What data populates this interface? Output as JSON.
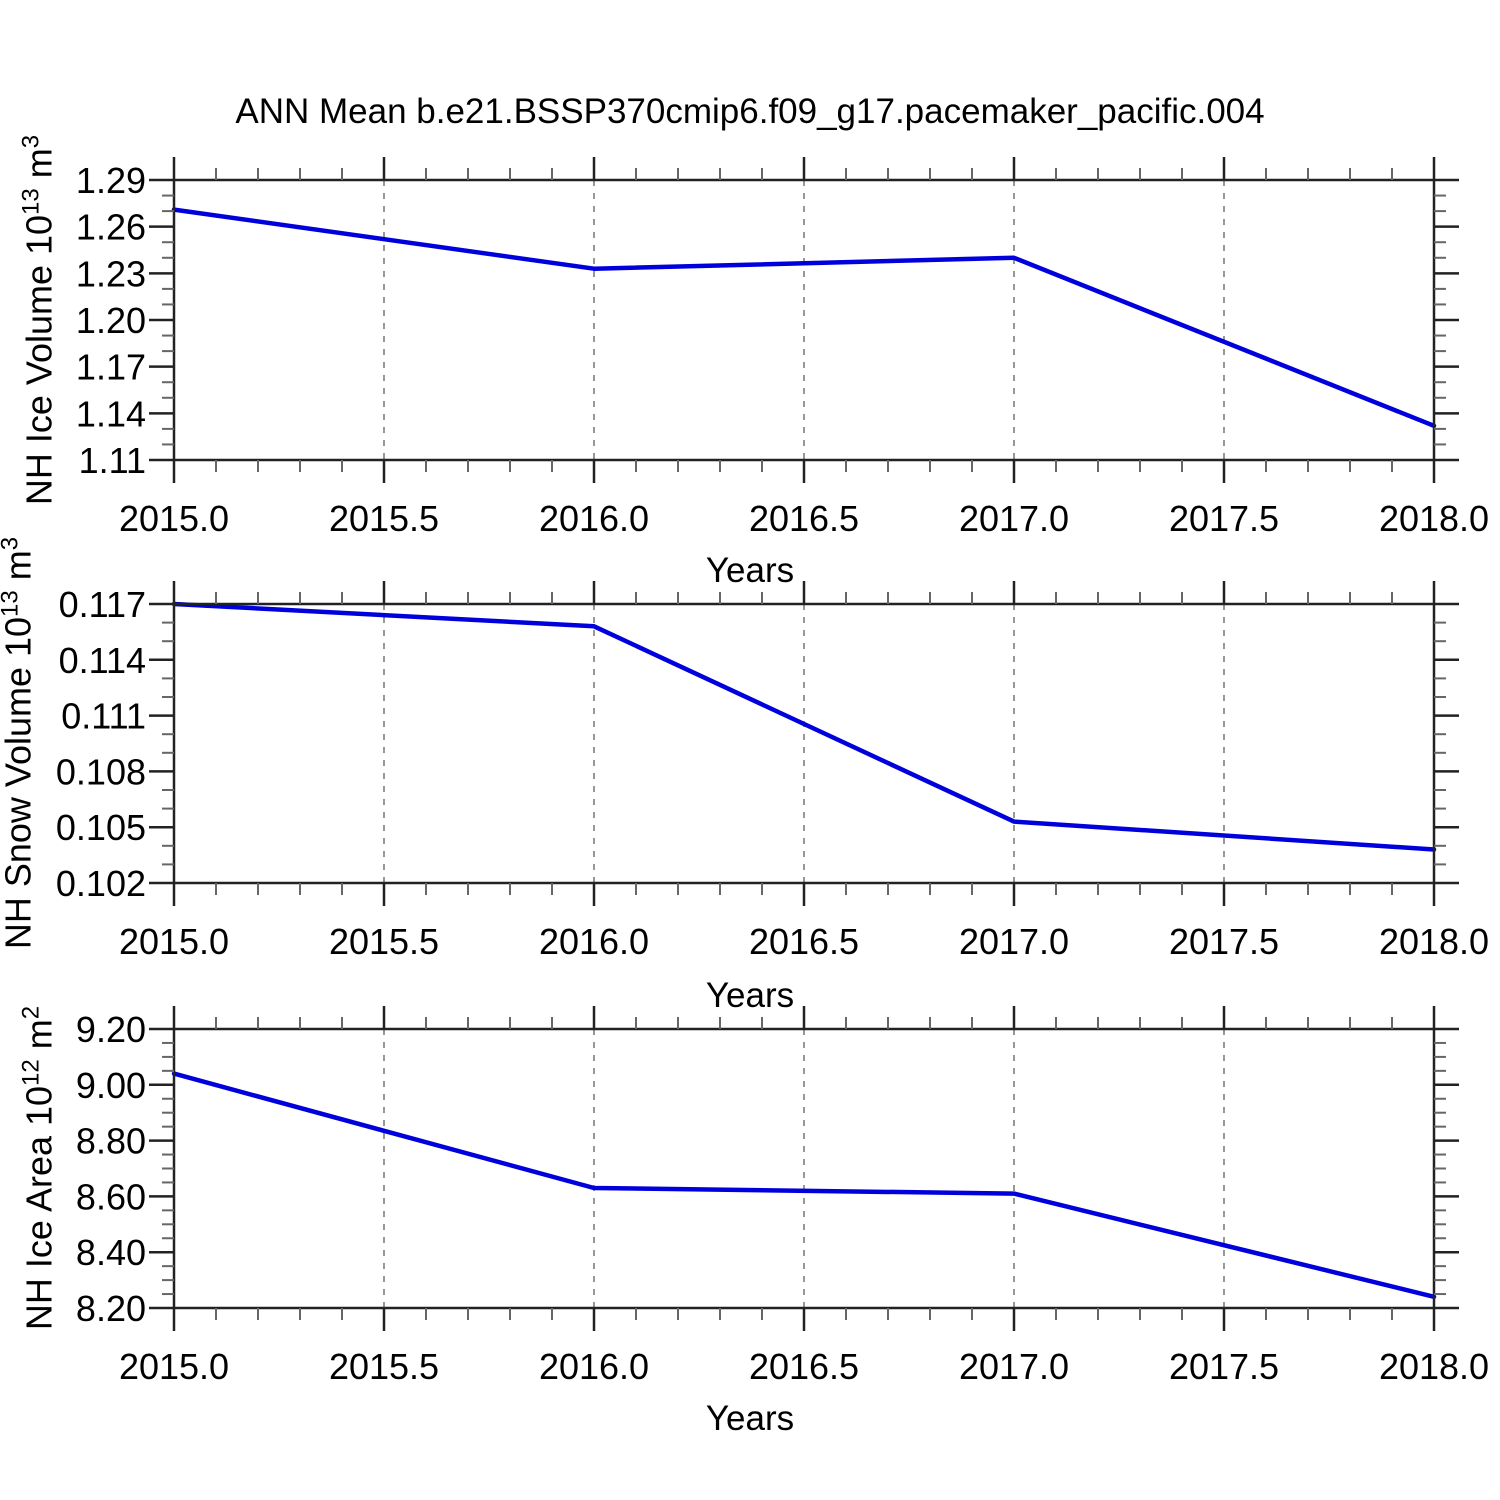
{
  "title": "ANN Mean b.e21.BSSP370cmip6.f09_g17.pacemaker_pacific.004",
  "colors": {
    "line": "#0000dd",
    "grid": "#8c8c8c",
    "axis": "#222222",
    "minor_tick": "#666666",
    "text": "#000000"
  },
  "chart_data": [
    {
      "type": "line",
      "series_name": "NH Ice Volume",
      "x": [
        2015.0,
        2016.0,
        2017.0,
        2018.0
      ],
      "values": [
        1.271,
        1.233,
        1.24,
        1.132
      ],
      "xlabel": "Years",
      "ylabel": {
        "prefix": "NH Ice Volume 10",
        "exponent": "13",
        "unit": " m",
        "unit_exponent": "3"
      },
      "ylim": [
        1.11,
        1.29
      ],
      "y_major_ticks": [
        "1.29",
        "1.26",
        "1.23",
        "1.20",
        "1.17",
        "1.14",
        "1.11"
      ],
      "y_major_values": [
        1.29,
        1.26,
        1.23,
        1.2,
        1.17,
        1.14,
        1.11
      ],
      "y_minor_step": 0.01,
      "xlim": [
        2015.0,
        2018.0
      ],
      "x_major_ticks": [
        "2015.0",
        "2015.5",
        "2016.0",
        "2016.5",
        "2017.0",
        "2017.5",
        "2018.0"
      ],
      "x_major_values": [
        2015.0,
        2015.5,
        2016.0,
        2016.5,
        2017.0,
        2017.5,
        2018.0
      ],
      "x_minor_step": 0.1,
      "grid_x_values": [
        2015.5,
        2016.0,
        2016.5,
        2017.0,
        2017.5
      ],
      "grid_on": true,
      "legend": "none"
    },
    {
      "type": "line",
      "series_name": "NH Snow Volume",
      "x": [
        2015.0,
        2016.0,
        2017.0,
        2018.0
      ],
      "values": [
        0.117,
        0.1158,
        0.1053,
        0.1038
      ],
      "xlabel": "Years",
      "ylabel": {
        "prefix": "NH Snow Volume 10",
        "exponent": "13",
        "unit": " m",
        "unit_exponent": "3"
      },
      "ylim": [
        0.102,
        0.117
      ],
      "y_major_ticks": [
        "0.117",
        "0.114",
        "0.111",
        "0.108",
        "0.105",
        "0.102"
      ],
      "y_major_values": [
        0.117,
        0.114,
        0.111,
        0.108,
        0.105,
        0.102
      ],
      "y_minor_step": 0.001,
      "xlim": [
        2015.0,
        2018.0
      ],
      "x_major_ticks": [
        "2015.0",
        "2015.5",
        "2016.0",
        "2016.5",
        "2017.0",
        "2017.5",
        "2018.0"
      ],
      "x_major_values": [
        2015.0,
        2015.5,
        2016.0,
        2016.5,
        2017.0,
        2017.5,
        2018.0
      ],
      "x_minor_step": 0.1,
      "grid_x_values": [
        2015.5,
        2016.0,
        2016.5,
        2017.0,
        2017.5
      ],
      "grid_on": true,
      "legend": "none"
    },
    {
      "type": "line",
      "series_name": "NH Ice Area",
      "x": [
        2015.0,
        2016.0,
        2017.0,
        2018.0
      ],
      "values": [
        9.04,
        8.63,
        8.61,
        8.24
      ],
      "xlabel": "Years",
      "ylabel": {
        "prefix": "NH Ice Area 10",
        "exponent": "12",
        "unit": " m",
        "unit_exponent": "2"
      },
      "ylim": [
        8.2,
        9.2
      ],
      "y_major_ticks": [
        "9.20",
        "9.00",
        "8.80",
        "8.60",
        "8.40",
        "8.20"
      ],
      "y_major_values": [
        9.2,
        9.0,
        8.8,
        8.6,
        8.4,
        8.2
      ],
      "y_minor_step": 0.05,
      "xlim": [
        2015.0,
        2018.0
      ],
      "x_major_ticks": [
        "2015.0",
        "2015.5",
        "2016.0",
        "2016.5",
        "2017.0",
        "2017.5",
        "2018.0"
      ],
      "x_major_values": [
        2015.0,
        2015.5,
        2016.0,
        2016.5,
        2017.0,
        2017.5,
        2018.0
      ],
      "x_minor_step": 0.1,
      "grid_x_values": [
        2015.5,
        2016.0,
        2016.5,
        2017.0,
        2017.5
      ],
      "grid_on": true,
      "legend": "none"
    }
  ]
}
